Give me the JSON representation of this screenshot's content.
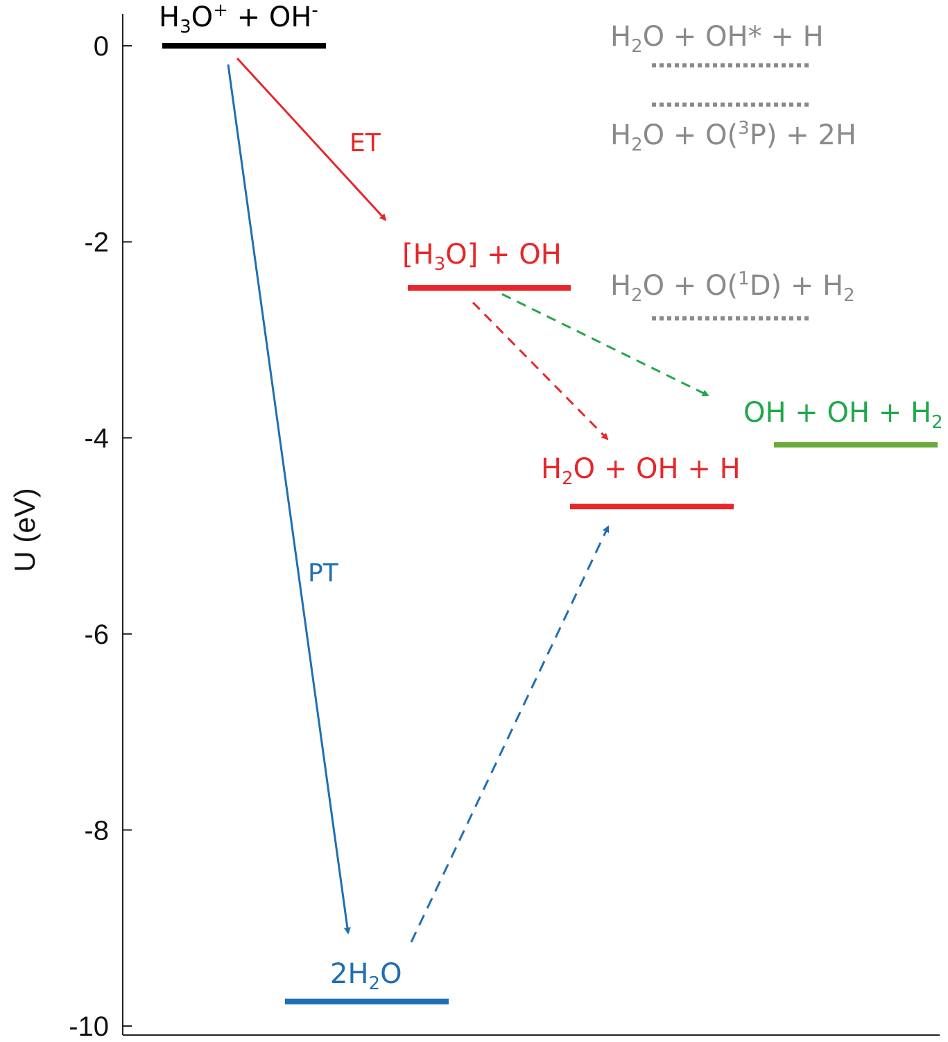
{
  "axis": {
    "ylabel": "U (eV)",
    "ylim": [
      -10,
      0.3
    ],
    "ticks": [
      {
        "value": 0,
        "label": "0"
      },
      {
        "value": -2,
        "label": "-2"
      },
      {
        "value": -4,
        "label": "-4"
      },
      {
        "value": -6,
        "label": "-6"
      },
      {
        "value": -8,
        "label": "-8"
      },
      {
        "value": -10,
        "label": "-10"
      }
    ]
  },
  "colors": {
    "black": "#000000",
    "red": "#e8262a",
    "blue": "#1f6fb4",
    "green": "#20a84a",
    "olive": "#6aab3a",
    "gray": "#8a8a8a"
  },
  "levels": [
    {
      "id": "h3o-oh",
      "energy": 0.0,
      "color": "#000000",
      "style": "solid",
      "label": [
        {
          "t": "H"
        },
        {
          "t": "3",
          "sub": true
        },
        {
          "t": "O"
        },
        {
          "t": "+",
          "sup": true
        },
        {
          "t": " + OH"
        },
        {
          "t": "-",
          "sup": true
        }
      ]
    },
    {
      "id": "h3o-radical-oh",
      "energy": -2.47,
      "color": "#e8262a",
      "style": "solid",
      "label": [
        {
          "t": "[H"
        },
        {
          "t": "3",
          "sub": true
        },
        {
          "t": "O] + OH"
        }
      ]
    },
    {
      "id": "h2o-oh-h",
      "energy": -4.7,
      "color": "#e8262a",
      "style": "solid",
      "label": [
        {
          "t": "H"
        },
        {
          "t": "2",
          "sub": true
        },
        {
          "t": "O + OH + H"
        }
      ]
    },
    {
      "id": "oh-oh-h2",
      "energy": -4.07,
      "color": "#6aab3a",
      "label_color": "#20a84a",
      "style": "solid",
      "label": [
        {
          "t": "OH + OH + H"
        },
        {
          "t": "2",
          "sub": true
        }
      ]
    },
    {
      "id": "2h2o",
      "energy": -9.75,
      "color": "#1f6fb4",
      "style": "solid",
      "label": [
        {
          "t": "2H"
        },
        {
          "t": "2",
          "sub": true
        },
        {
          "t": "O"
        }
      ]
    },
    {
      "id": "h2o-oh-star-h",
      "energy": -0.2,
      "color": "#8a8a8a",
      "style": "dotted",
      "label": [
        {
          "t": "H"
        },
        {
          "t": "2",
          "sub": true
        },
        {
          "t": "O + OH* + H"
        }
      ]
    },
    {
      "id": "h2o-o3p-2h",
      "energy": -0.6,
      "color": "#8a8a8a",
      "style": "dotted",
      "label": [
        {
          "t": "H"
        },
        {
          "t": "2",
          "sub": true
        },
        {
          "t": "O + O("
        },
        {
          "t": "3",
          "sup": true
        },
        {
          "t": "P) + 2H"
        }
      ]
    },
    {
      "id": "h2o-o1d-h2",
      "energy": -2.78,
      "color": "#8a8a8a",
      "style": "dotted",
      "label": [
        {
          "t": "H"
        },
        {
          "t": "2",
          "sub": true
        },
        {
          "t": "O + O("
        },
        {
          "t": "1",
          "sup": true
        },
        {
          "t": "D) + H"
        },
        {
          "t": "2",
          "sub": true
        }
      ]
    }
  ],
  "arrows": [
    {
      "id": "et-arrow",
      "color": "#e8262a",
      "style": "solid",
      "label": "ET"
    },
    {
      "id": "pt-arrow",
      "color": "#1f6fb4",
      "style": "solid",
      "label": "PT"
    },
    {
      "id": "red-dashed-arrow",
      "color": "#e8262a",
      "style": "dashed"
    },
    {
      "id": "green-dashed-arrow",
      "color": "#20a84a",
      "style": "dashed"
    },
    {
      "id": "blue-dashed-arrow",
      "color": "#1f6fb4",
      "style": "dashed"
    }
  ]
}
